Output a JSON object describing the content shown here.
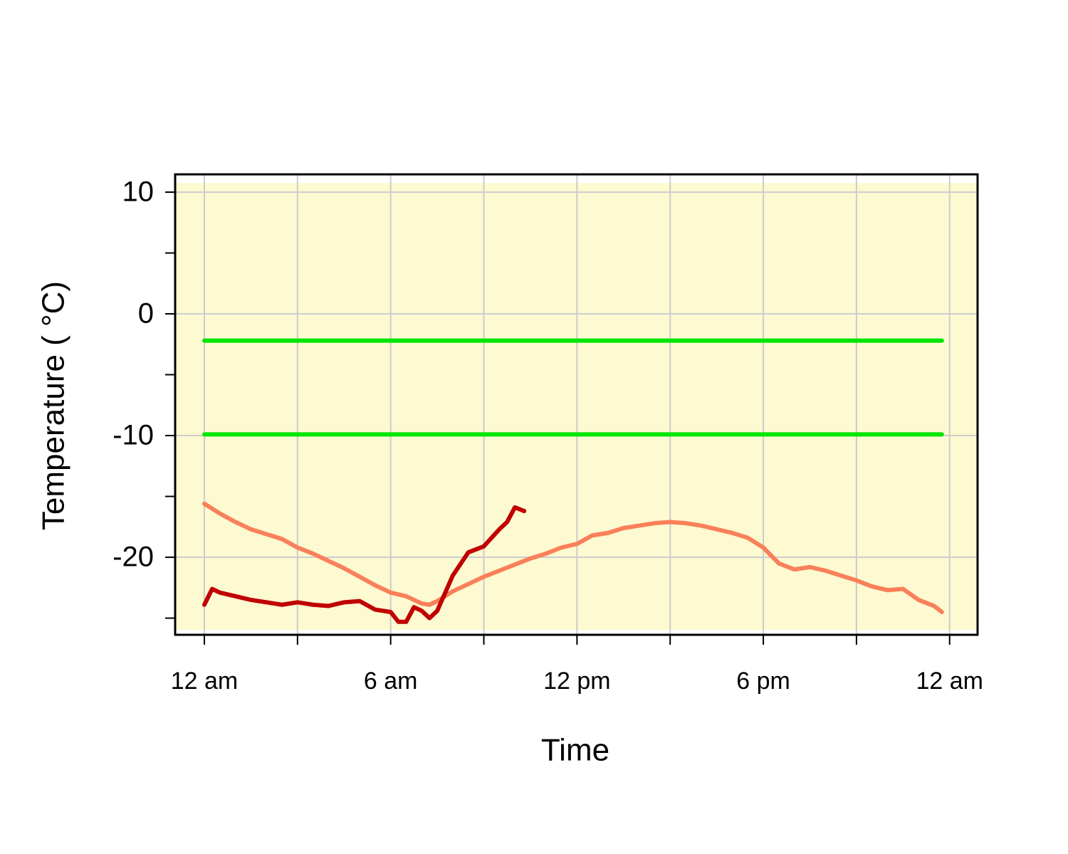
{
  "chart_data": {
    "type": "line",
    "xlabel": "Time",
    "ylabel": "Temperature ( °C)",
    "xlim": [
      -0.94,
      24.9
    ],
    "ylim": [
      -26.37,
      11.46
    ],
    "xticks": [
      {
        "value": 0,
        "label": "12 am"
      },
      {
        "value": 6,
        "label": "6 am"
      },
      {
        "value": 12,
        "label": "12 pm"
      },
      {
        "value": 18,
        "label": "6 pm"
      },
      {
        "value": 24,
        "label": "12 am"
      }
    ],
    "xminorticks": [
      3,
      9,
      15,
      21
    ],
    "yticks": [
      10,
      0,
      -10,
      -20
    ],
    "yminorticks": [
      5,
      -5,
      -15,
      -25
    ],
    "grid": true,
    "background": "#fdf9d0",
    "series": [
      {
        "color": "#00e600",
        "x": [
          0,
          23.75
        ],
        "values": [
          -2.2,
          -2.2
        ]
      },
      {
        "color": "#00e600",
        "x": [
          0,
          23.75
        ],
        "values": [
          -9.9,
          -9.9
        ]
      },
      {
        "color": "#f9805a",
        "x": [
          0,
          0.5,
          1,
          1.5,
          2,
          2.5,
          3,
          3.5,
          4,
          4.5,
          5,
          5.5,
          6,
          6.5,
          7,
          7.25,
          7.5,
          8,
          8.5,
          9,
          9.5,
          10,
          10.5,
          11,
          11.5,
          12,
          12.5,
          13,
          13.5,
          14,
          14.5,
          15,
          15.5,
          16,
          16.5,
          17,
          17.5,
          18,
          18.5,
          19,
          19.5,
          20,
          20.5,
          21,
          21.5,
          22,
          22.5,
          23,
          23.5,
          23.75
        ],
        "values": [
          -15.6,
          -16.4,
          -17.1,
          -17.7,
          -18.1,
          -18.5,
          -19.2,
          -19.7,
          -20.3,
          -20.9,
          -21.6,
          -22.3,
          -22.9,
          -23.2,
          -23.8,
          -23.9,
          -23.6,
          -22.8,
          -22.2,
          -21.6,
          -21.1,
          -20.6,
          -20.1,
          -19.7,
          -19.2,
          -18.9,
          -18.2,
          -18.0,
          -17.6,
          -17.4,
          -17.2,
          -17.1,
          -17.2,
          -17.4,
          -17.7,
          -18.0,
          -18.4,
          -19.2,
          -20.5,
          -21.0,
          -20.8,
          -21.1,
          -21.5,
          -21.9,
          -22.4,
          -22.7,
          -22.6,
          -23.5,
          -24.0,
          -24.5
        ]
      },
      {
        "color": "#c00000",
        "x": [
          0,
          0.25,
          0.5,
          1,
          1.5,
          2,
          2.5,
          3,
          3.5,
          4,
          4.5,
          5,
          5.5,
          6,
          6.25,
          6.5,
          6.75,
          7,
          7.25,
          7.5,
          8,
          8.5,
          9,
          9.5,
          9.75,
          10,
          10.3
        ],
        "values": [
          -23.9,
          -22.6,
          -22.9,
          -23.2,
          -23.5,
          -23.7,
          -23.9,
          -23.7,
          -23.9,
          -24.0,
          -23.7,
          -23.6,
          -24.3,
          -24.5,
          -25.3,
          -25.3,
          -24.1,
          -24.4,
          -25.0,
          -24.4,
          -21.5,
          -19.6,
          -19.1,
          -17.7,
          -17.1,
          -15.9,
          -16.2
        ]
      }
    ]
  }
}
